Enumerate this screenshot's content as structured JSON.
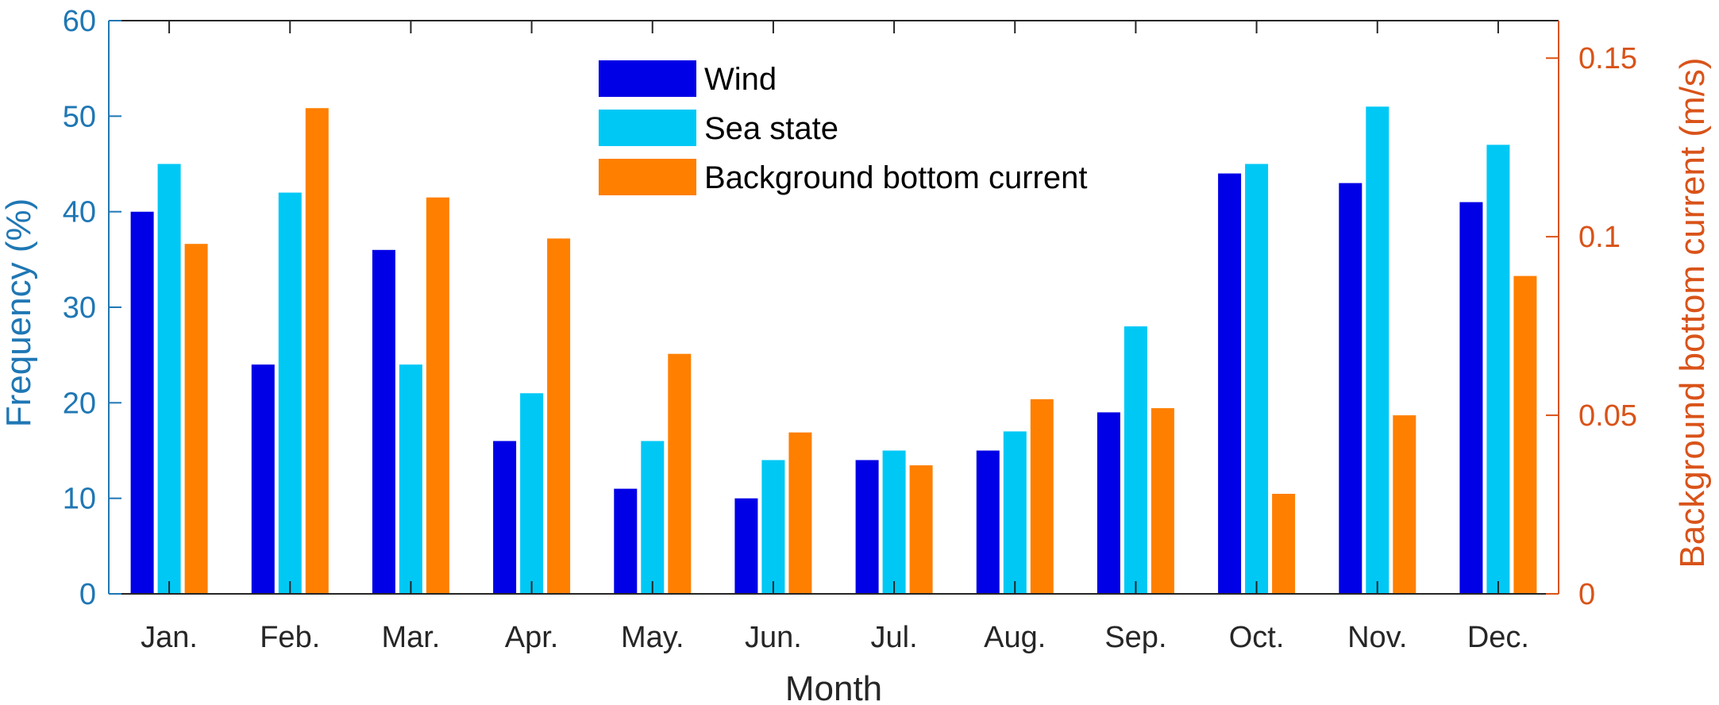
{
  "chart_data": {
    "type": "bar",
    "categories": [
      "Jan.",
      "Feb.",
      "Mar.",
      "Apr.",
      "May.",
      "Jun.",
      "Jul.",
      "Aug.",
      "Sep.",
      "Oct.",
      "Nov.",
      "Dec."
    ],
    "xlabel": "Month",
    "ylabel_left": "Frequency (%)",
    "ylabel_right": "Background bottom current (m/s)",
    "ylim_left": [
      0,
      60
    ],
    "yticks_left": [
      0,
      10,
      20,
      30,
      40,
      50,
      60
    ],
    "ylim_right": [
      0,
      0.1605
    ],
    "yticks_right": [
      0,
      0.05,
      0.1,
      0.15
    ],
    "grid": false,
    "legend_placement": "top-center",
    "series": [
      {
        "name": "Wind",
        "axis": "left",
        "color": "#0000E6",
        "values": [
          40,
          24,
          36,
          16,
          11,
          10,
          14,
          15,
          19,
          44,
          43,
          41
        ]
      },
      {
        "name": "Sea state",
        "axis": "left",
        "color": "#00C8F5",
        "values": [
          45,
          42,
          24,
          21,
          16,
          14,
          15,
          17,
          28,
          45,
          51,
          47
        ]
      },
      {
        "name": "Background bottom current",
        "axis": "right",
        "color": "#FF7F00",
        "values": [
          0.098,
          0.136,
          0.111,
          0.0995,
          0.0672,
          0.0452,
          0.036,
          0.0545,
          0.052,
          0.028,
          0.05,
          0.089
        ]
      }
    ],
    "axis_colors": {
      "left": "#1F77B4",
      "right": "#D95319"
    }
  }
}
